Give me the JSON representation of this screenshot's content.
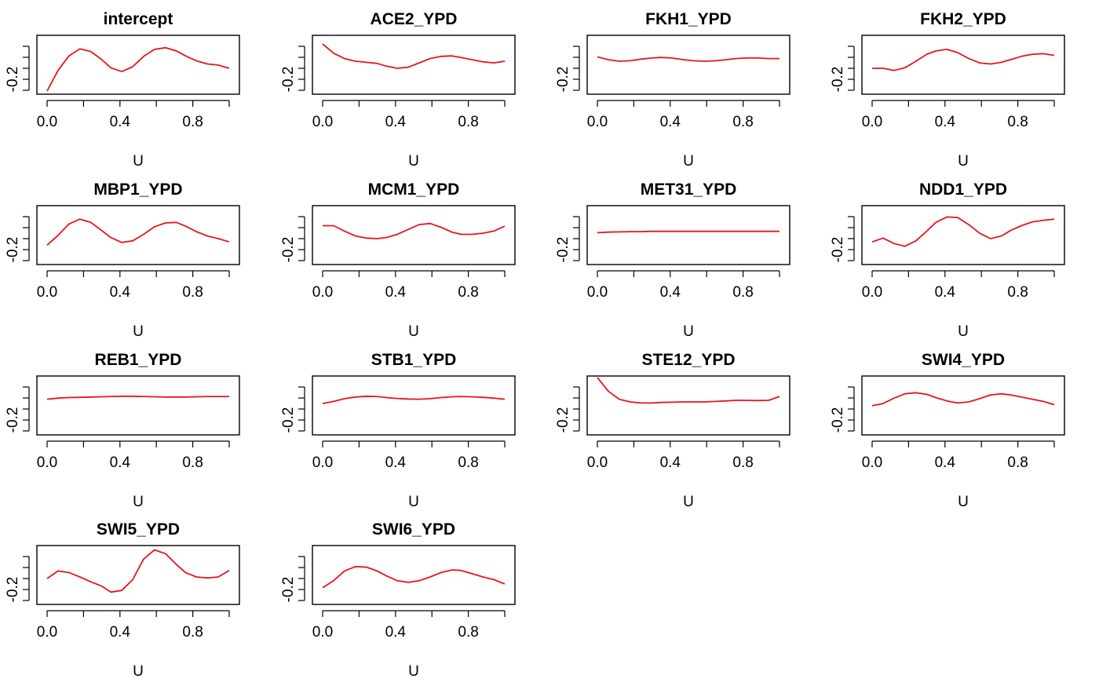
{
  "figure": {
    "line_color": "#e8141b",
    "frame_color": "#000000"
  },
  "chart_data": [
    {
      "type": "line",
      "title": "intercept",
      "xlabel": "U",
      "ylabel": "",
      "x_ticks": [
        "0.0",
        "0.4",
        "0.8"
      ],
      "y_ticks": [
        "-0.2"
      ],
      "x_range": [
        0,
        1
      ],
      "y_range": [
        0,
        1
      ],
      "x": [
        0,
        0.06,
        0.12,
        0.18,
        0.24,
        0.3,
        0.35,
        0.41,
        0.47,
        0.53,
        0.59,
        0.65,
        0.71,
        0.76,
        0.82,
        0.88,
        0.94,
        1.0
      ],
      "y": [
        0.0,
        0.38,
        0.65,
        0.78,
        0.73,
        0.58,
        0.43,
        0.36,
        0.45,
        0.64,
        0.77,
        0.8,
        0.74,
        0.65,
        0.56,
        0.5,
        0.48,
        0.42
      ]
    },
    {
      "type": "line",
      "title": "ACE2_YPD",
      "xlabel": "U",
      "ylabel": "",
      "x_ticks": [
        "0.0",
        "0.4",
        "0.8"
      ],
      "y_ticks": [
        "-0.2"
      ],
      "x_range": [
        0,
        1
      ],
      "y_range": [
        0,
        1
      ],
      "x": [
        0,
        0.06,
        0.12,
        0.18,
        0.24,
        0.3,
        0.35,
        0.41,
        0.47,
        0.53,
        0.59,
        0.65,
        0.71,
        0.76,
        0.82,
        0.88,
        0.94,
        1.0
      ],
      "y": [
        0.87,
        0.7,
        0.6,
        0.55,
        0.53,
        0.51,
        0.46,
        0.42,
        0.44,
        0.52,
        0.6,
        0.64,
        0.65,
        0.62,
        0.58,
        0.54,
        0.52,
        0.55
      ]
    },
    {
      "type": "line",
      "title": "FKH1_YPD",
      "xlabel": "U",
      "ylabel": "",
      "x_ticks": [
        "0.0",
        "0.4",
        "0.8"
      ],
      "y_ticks": [
        "-0.2"
      ],
      "x_range": [
        0,
        1
      ],
      "y_range": [
        0,
        1
      ],
      "x": [
        0,
        0.06,
        0.12,
        0.18,
        0.24,
        0.3,
        0.35,
        0.41,
        0.47,
        0.53,
        0.59,
        0.65,
        0.71,
        0.76,
        0.82,
        0.88,
        0.94,
        1.0
      ],
      "y": [
        0.63,
        0.58,
        0.55,
        0.56,
        0.59,
        0.61,
        0.62,
        0.61,
        0.58,
        0.56,
        0.55,
        0.56,
        0.58,
        0.6,
        0.61,
        0.61,
        0.6,
        0.6
      ]
    },
    {
      "type": "line",
      "title": "FKH2_YPD",
      "xlabel": "U",
      "ylabel": "",
      "x_ticks": [
        "0.0",
        "0.4",
        "0.8"
      ],
      "y_ticks": [
        "-0.2"
      ],
      "x_range": [
        0,
        1
      ],
      "y_range": [
        0,
        1
      ],
      "x": [
        0,
        0.06,
        0.12,
        0.18,
        0.24,
        0.3,
        0.35,
        0.41,
        0.47,
        0.53,
        0.59,
        0.65,
        0.71,
        0.76,
        0.82,
        0.88,
        0.94,
        1.0
      ],
      "y": [
        0.42,
        0.42,
        0.38,
        0.43,
        0.55,
        0.68,
        0.74,
        0.77,
        0.71,
        0.6,
        0.52,
        0.5,
        0.53,
        0.58,
        0.64,
        0.68,
        0.69,
        0.66
      ]
    },
    {
      "type": "line",
      "title": "MBP1_YPD",
      "xlabel": "U",
      "ylabel": "",
      "x_ticks": [
        "0.0",
        "0.4",
        "0.8"
      ],
      "y_ticks": [
        "-0.2"
      ],
      "x_range": [
        0,
        1
      ],
      "y_range": [
        0,
        1
      ],
      "x": [
        0,
        0.06,
        0.12,
        0.18,
        0.24,
        0.3,
        0.35,
        0.41,
        0.47,
        0.53,
        0.59,
        0.65,
        0.71,
        0.76,
        0.82,
        0.88,
        0.94,
        1.0
      ],
      "y": [
        0.3,
        0.48,
        0.69,
        0.78,
        0.72,
        0.57,
        0.44,
        0.35,
        0.38,
        0.5,
        0.64,
        0.71,
        0.72,
        0.65,
        0.55,
        0.47,
        0.42,
        0.36
      ]
    },
    {
      "type": "line",
      "title": "MCM1_YPD",
      "xlabel": "U",
      "ylabel": "",
      "x_ticks": [
        "0.0",
        "0.4",
        "0.8"
      ],
      "y_ticks": [
        "-0.2"
      ],
      "x_range": [
        0,
        1
      ],
      "y_range": [
        0,
        1
      ],
      "x": [
        0,
        0.06,
        0.12,
        0.18,
        0.24,
        0.3,
        0.35,
        0.41,
        0.47,
        0.53,
        0.59,
        0.65,
        0.71,
        0.76,
        0.82,
        0.88,
        0.94,
        1.0
      ],
      "y": [
        0.66,
        0.66,
        0.56,
        0.47,
        0.43,
        0.42,
        0.44,
        0.5,
        0.59,
        0.68,
        0.7,
        0.63,
        0.54,
        0.5,
        0.5,
        0.52,
        0.56,
        0.65
      ]
    },
    {
      "type": "line",
      "title": "MET31_YPD",
      "xlabel": "U",
      "ylabel": "",
      "x_ticks": [
        "0.0",
        "0.4",
        "0.8"
      ],
      "y_ticks": [
        "-0.2"
      ],
      "x_range": [
        0,
        1
      ],
      "y_range": [
        0,
        1
      ],
      "x": [
        0,
        0.06,
        0.12,
        0.18,
        0.24,
        0.3,
        0.35,
        0.41,
        0.47,
        0.53,
        0.59,
        0.65,
        0.71,
        0.76,
        0.82,
        0.88,
        0.94,
        1.0
      ],
      "y": [
        0.53,
        0.54,
        0.545,
        0.55,
        0.55,
        0.555,
        0.555,
        0.555,
        0.555,
        0.555,
        0.555,
        0.555,
        0.555,
        0.555,
        0.555,
        0.555,
        0.555,
        0.555
      ]
    },
    {
      "type": "line",
      "title": "NDD1_YPD",
      "xlabel": "U",
      "ylabel": "",
      "x_ticks": [
        "0.0",
        "0.4",
        "0.8"
      ],
      "y_ticks": [
        "-0.2"
      ],
      "x_range": [
        0,
        1
      ],
      "y_range": [
        0,
        1
      ],
      "x": [
        0,
        0.06,
        0.12,
        0.18,
        0.24,
        0.3,
        0.35,
        0.41,
        0.47,
        0.53,
        0.59,
        0.65,
        0.71,
        0.76,
        0.82,
        0.88,
        0.94,
        1.0
      ],
      "y": [
        0.36,
        0.43,
        0.33,
        0.28,
        0.38,
        0.56,
        0.72,
        0.82,
        0.81,
        0.68,
        0.52,
        0.42,
        0.47,
        0.57,
        0.66,
        0.73,
        0.76,
        0.78
      ]
    },
    {
      "type": "line",
      "title": "REB1_YPD",
      "xlabel": "U",
      "ylabel": "",
      "x_ticks": [
        "0.0",
        "0.4",
        "0.8"
      ],
      "y_ticks": [
        "-0.2"
      ],
      "x_range": [
        0,
        1
      ],
      "y_range": [
        0,
        1
      ],
      "x": [
        0,
        0.06,
        0.12,
        0.18,
        0.24,
        0.3,
        0.35,
        0.41,
        0.47,
        0.53,
        0.59,
        0.65,
        0.71,
        0.76,
        0.82,
        0.88,
        0.94,
        1.0
      ],
      "y": [
        0.6,
        0.62,
        0.63,
        0.635,
        0.64,
        0.645,
        0.65,
        0.655,
        0.655,
        0.65,
        0.645,
        0.64,
        0.64,
        0.64,
        0.645,
        0.65,
        0.65,
        0.65
      ]
    },
    {
      "type": "line",
      "title": "STB1_YPD",
      "xlabel": "U",
      "ylabel": "",
      "x_ticks": [
        "0.0",
        "0.4",
        "0.8"
      ],
      "y_ticks": [
        "-0.2"
      ],
      "x_range": [
        0,
        1
      ],
      "y_range": [
        0,
        1
      ],
      "x": [
        0,
        0.06,
        0.12,
        0.18,
        0.24,
        0.3,
        0.35,
        0.41,
        0.47,
        0.53,
        0.59,
        0.65,
        0.71,
        0.76,
        0.82,
        0.88,
        0.94,
        1.0
      ],
      "y": [
        0.52,
        0.56,
        0.61,
        0.64,
        0.655,
        0.65,
        0.63,
        0.615,
        0.605,
        0.6,
        0.61,
        0.63,
        0.645,
        0.65,
        0.645,
        0.635,
        0.62,
        0.6
      ]
    },
    {
      "type": "line",
      "title": "STE12_YPD",
      "xlabel": "U",
      "ylabel": "",
      "x_ticks": [
        "0.0",
        "0.4",
        "0.8"
      ],
      "y_ticks": [
        "-0.2"
      ],
      "x_range": [
        0,
        1
      ],
      "y_range": [
        0,
        1
      ],
      "x": [
        0,
        0.06,
        0.12,
        0.18,
        0.24,
        0.3,
        0.35,
        0.41,
        0.47,
        0.53,
        0.59,
        0.65,
        0.71,
        0.76,
        0.82,
        0.88,
        0.94,
        1.0
      ],
      "y": [
        1.0,
        0.75,
        0.6,
        0.55,
        0.53,
        0.53,
        0.54,
        0.545,
        0.55,
        0.55,
        0.55,
        0.56,
        0.57,
        0.58,
        0.58,
        0.575,
        0.58,
        0.65
      ]
    },
    {
      "type": "line",
      "title": "SWI4_YPD",
      "xlabel": "U",
      "ylabel": "",
      "x_ticks": [
        "0.0",
        "0.4",
        "0.8"
      ],
      "y_ticks": [
        "-0.2"
      ],
      "x_range": [
        0,
        1
      ],
      "y_range": [
        0,
        1
      ],
      "x": [
        0,
        0.06,
        0.12,
        0.18,
        0.24,
        0.3,
        0.35,
        0.41,
        0.47,
        0.53,
        0.59,
        0.65,
        0.71,
        0.76,
        0.82,
        0.88,
        0.94,
        1.0
      ],
      "y": [
        0.48,
        0.52,
        0.62,
        0.7,
        0.72,
        0.69,
        0.63,
        0.57,
        0.53,
        0.55,
        0.61,
        0.68,
        0.7,
        0.68,
        0.64,
        0.6,
        0.56,
        0.5
      ]
    },
    {
      "type": "line",
      "title": "SWI5_YPD",
      "xlabel": "U",
      "ylabel": "",
      "x_ticks": [
        "0.0",
        "0.4",
        "0.8"
      ],
      "y_ticks": [
        "-0.2"
      ],
      "x_range": [
        0,
        1
      ],
      "y_range": [
        0,
        1
      ],
      "x": [
        0,
        0.06,
        0.12,
        0.18,
        0.24,
        0.3,
        0.35,
        0.41,
        0.47,
        0.53,
        0.59,
        0.65,
        0.71,
        0.76,
        0.82,
        0.88,
        0.94,
        1.0
      ],
      "y": [
        0.42,
        0.56,
        0.53,
        0.45,
        0.36,
        0.28,
        0.17,
        0.2,
        0.4,
        0.78,
        0.95,
        0.88,
        0.68,
        0.53,
        0.45,
        0.43,
        0.45,
        0.57
      ]
    },
    {
      "type": "line",
      "title": "SWI6_YPD",
      "xlabel": "U",
      "ylabel": "",
      "x_ticks": [
        "0.0",
        "0.4",
        "0.8"
      ],
      "y_ticks": [
        "-0.2"
      ],
      "x_range": [
        0,
        1
      ],
      "y_range": [
        0,
        1
      ],
      "x": [
        0,
        0.06,
        0.12,
        0.18,
        0.24,
        0.3,
        0.35,
        0.41,
        0.47,
        0.53,
        0.59,
        0.65,
        0.71,
        0.76,
        0.82,
        0.88,
        0.94,
        1.0
      ],
      "y": [
        0.25,
        0.38,
        0.56,
        0.64,
        0.63,
        0.56,
        0.47,
        0.38,
        0.35,
        0.38,
        0.45,
        0.53,
        0.58,
        0.57,
        0.51,
        0.45,
        0.4,
        0.32
      ]
    }
  ]
}
